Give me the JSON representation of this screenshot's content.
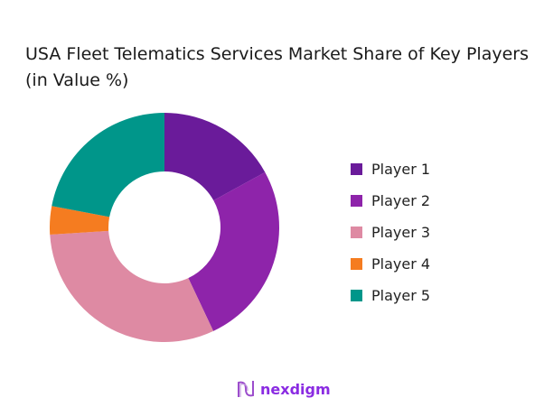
{
  "chart_data": {
    "type": "pie",
    "subtype": "donut",
    "title": "USA Fleet Telematics Services Market Share of Key Players (in Value %)",
    "categories": [
      "Player 1",
      "Player 2",
      "Player 3",
      "Player 4",
      "Player 5"
    ],
    "values": [
      17,
      26,
      31,
      4,
      22
    ],
    "unit": "%",
    "colors": [
      "#6a1b9a",
      "#8e24aa",
      "#de8aa3",
      "#f57c20",
      "#00968a"
    ],
    "legend_position": "right"
  },
  "brand": {
    "name": "nexdigm",
    "color": "#8a2be2"
  }
}
